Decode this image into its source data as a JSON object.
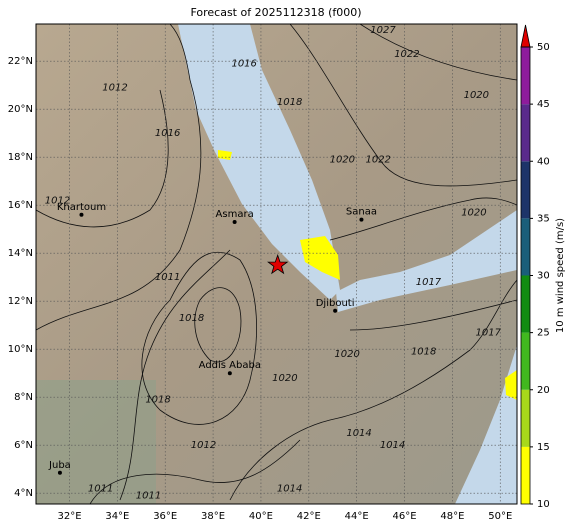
{
  "map": {
    "title": "Forecast of 2025112318 (f000)",
    "lonlim": [
      30.6,
      50.7
    ],
    "latlim": [
      3.55,
      23.55
    ],
    "lon_ticks": [
      {
        "value": 32,
        "label": "32°E"
      },
      {
        "value": 34,
        "label": "34°E"
      },
      {
        "value": 36,
        "label": "36°E"
      },
      {
        "value": 38,
        "label": "38°E"
      },
      {
        "value": 40,
        "label": "40°E"
      },
      {
        "value": 42,
        "label": "42°E"
      },
      {
        "value": 44,
        "label": "44°E"
      },
      {
        "value": 46,
        "label": "46°E"
      },
      {
        "value": 48,
        "label": "48°E"
      },
      {
        "value": 50,
        "label": "50°E"
      }
    ],
    "lat_ticks": [
      {
        "value": 4,
        "label": "4°N"
      },
      {
        "value": 6,
        "label": "6°N"
      },
      {
        "value": 8,
        "label": "8°N"
      },
      {
        "value": 10,
        "label": "10°N"
      },
      {
        "value": 12,
        "label": "12°N"
      },
      {
        "value": 14,
        "label": "14°N"
      },
      {
        "value": 16,
        "label": "16°N"
      },
      {
        "value": 18,
        "label": "18°N"
      },
      {
        "value": 20,
        "label": "20°N"
      },
      {
        "value": 22,
        "label": "22°N"
      }
    ],
    "cities": [
      {
        "name": "Khartoum",
        "lon": 32.5,
        "lat": 15.6
      },
      {
        "name": "Asmara",
        "lon": 38.9,
        "lat": 15.3
      },
      {
        "name": "Sanaa",
        "lon": 44.2,
        "lat": 15.4
      },
      {
        "name": "Djibouti",
        "lon": 43.1,
        "lat": 11.6
      },
      {
        "name": "Addis Ababa",
        "lon": 38.7,
        "lat": 9.0
      },
      {
        "name": "Juba",
        "lon": 31.6,
        "lat": 4.85
      }
    ],
    "marker": {
      "lon": 40.7,
      "lat": 13.5,
      "color": "#e00000"
    },
    "contour_labels": [
      {
        "value": 1012,
        "lon": 31.5,
        "lat": 16.2
      },
      {
        "value": 1012,
        "lon": 33.9,
        "lat": 20.9
      },
      {
        "value": 1016,
        "lon": 36.1,
        "lat": 19.0
      },
      {
        "value": 1016,
        "lon": 39.3,
        "lat": 21.9
      },
      {
        "value": 1018,
        "lon": 41.2,
        "lat": 20.3
      },
      {
        "value": 1020,
        "lon": 43.4,
        "lat": 17.9
      },
      {
        "value": 1022,
        "lon": 44.9,
        "lat": 17.9
      },
      {
        "value": 1022,
        "lon": 46.1,
        "lat": 22.3
      },
      {
        "value": 1027,
        "lon": 45.1,
        "lat": 23.3
      },
      {
        "value": 1020,
        "lon": 49.0,
        "lat": 20.6
      },
      {
        "value": 1020,
        "lon": 48.9,
        "lat": 15.7
      },
      {
        "value": 1017,
        "lon": 47.0,
        "lat": 12.8
      },
      {
        "value": 1017,
        "lon": 49.5,
        "lat": 10.7
      },
      {
        "value": 1018,
        "lon": 46.8,
        "lat": 9.9
      },
      {
        "value": 1020,
        "lon": 43.6,
        "lat": 9.8
      },
      {
        "value": 1020,
        "lon": 41.0,
        "lat": 8.8
      },
      {
        "value": 1011,
        "lon": 36.1,
        "lat": 13.0
      },
      {
        "value": 1018,
        "lon": 37.1,
        "lat": 11.3
      },
      {
        "value": 1018,
        "lon": 35.7,
        "lat": 7.9
      },
      {
        "value": 1012,
        "lon": 37.6,
        "lat": 6.0
      },
      {
        "value": 1014,
        "lon": 45.5,
        "lat": 6.0
      },
      {
        "value": 1014,
        "lon": 44.1,
        "lat": 6.5
      },
      {
        "value": 1014,
        "lon": 41.2,
        "lat": 4.2
      },
      {
        "value": 1011,
        "lon": 33.3,
        "lat": 4.2
      },
      {
        "value": 1011,
        "lon": 35.3,
        "lat": 3.9
      }
    ],
    "colorbar": {
      "label": "10 m wind speed (m/s)",
      "range": [
        10,
        50
      ],
      "ticks": [
        10,
        15,
        20,
        25,
        30,
        35,
        40,
        45,
        50
      ],
      "colors": [
        "#ffff00",
        "#a8d81a",
        "#41b81f",
        "#128c12",
        "#1a5e7a",
        "#1d3469",
        "#5a2a8c",
        "#8e1c9c"
      ],
      "extend_color": "#e00000"
    }
  }
}
